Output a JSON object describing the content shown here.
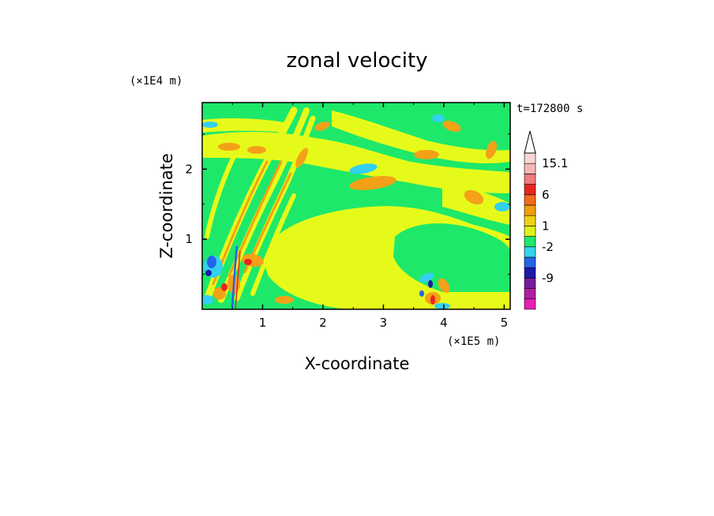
{
  "chart_data": {
    "type": "heatmap",
    "title": "zonal velocity",
    "xlabel": "X-coordinate",
    "ylabel": "Z-coordinate",
    "x_unit": "(×1E5 m)",
    "y_unit": "(×1E4 m)",
    "time_label": "t=172800 s",
    "xlim": [
      0,
      5.1
    ],
    "ylim": [
      0,
      2.95
    ],
    "x_ticks": [
      "1",
      "2",
      "3",
      "4",
      "5"
    ],
    "x_tick_values": [
      1,
      2,
      3,
      4,
      5
    ],
    "y_ticks": [
      "1",
      "2"
    ],
    "y_tick_values": [
      1,
      2
    ],
    "colorbar": {
      "labels": [
        "15.1",
        "6",
        "1",
        "-2",
        "-9"
      ],
      "label_values": [
        15.1,
        6,
        1,
        -2,
        -9
      ],
      "colors": [
        "#e81fb4",
        "#b01ea6",
        "#7a1aa0",
        "#1c19a8",
        "#2464e6",
        "#33d5f0",
        "#1fe86a",
        "#dff21a",
        "#f2d10f",
        "#f29d0c",
        "#f26a1c",
        "#e8261e",
        "#f07b7b",
        "#f4b8b8",
        "#f7d6d3"
      ],
      "colors_semantic": "bottom-to-top, most negative to most positive"
    },
    "field_colors": {
      "background": "#1ee86a",
      "yellow": "#e6fa1a",
      "orange": "#f4a118",
      "red": "#e8261e",
      "cyan": "#33d0f0",
      "blue": "#2464e6",
      "navy": "#1c19a8"
    }
  }
}
